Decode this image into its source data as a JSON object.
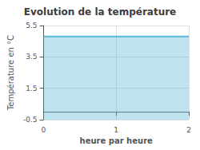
{
  "chart_data": {
    "type": "area",
    "title": "Evolution de la température",
    "xlabel": "heure par heure",
    "ylabel": "Température en °C",
    "x": [
      0,
      2
    ],
    "values": [
      4.8,
      4.8
    ],
    "color": "#5ab8d4",
    "xlim": [
      0,
      2
    ],
    "xticks": [
      0,
      1,
      2
    ],
    "ylim": [
      -0.5,
      5.5
    ],
    "yticks": [
      -0.5,
      1.5,
      3.5,
      5.5
    ],
    "grid": true
  }
}
